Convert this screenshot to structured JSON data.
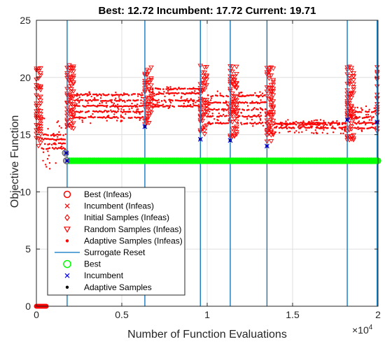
{
  "chart_data": {
    "type": "scatter",
    "title": "Best: 12.72 Incumbent: 17.72 Current: 19.71",
    "xlabel": "Number of Function Evaluations",
    "ylabel": "Objective Function",
    "x_exponent_label": "×10",
    "x_exponent_power": "4",
    "xlim": [
      0,
      20000
    ],
    "ylim": [
      0,
      25
    ],
    "x_ticks": [
      0,
      5000,
      10000,
      15000,
      20000
    ],
    "x_tick_labels": [
      "0",
      "0.5",
      "1",
      "1.5",
      "2"
    ],
    "y_ticks": [
      0,
      5,
      10,
      15,
      20,
      25
    ],
    "y_tick_labels": [
      "0",
      "5",
      "10",
      "15",
      "20",
      "25"
    ],
    "grid": true,
    "legend_position": "lower-left",
    "colors": {
      "infeasible": "#ff0000",
      "reset": "#0072bd",
      "best": "#00ff00",
      "incumbent": "#0000ff",
      "adaptive": "#000000"
    },
    "surrogate_resets": [
      1800,
      6350,
      9600,
      11350,
      13500,
      18200,
      19950
    ],
    "infeasible_blocks": [
      {
        "x_start": 0,
        "x_end": 320,
        "y_min": 14.0,
        "y_max": 21.0,
        "levels": [],
        "kind": "random"
      },
      {
        "x_start": 320,
        "x_end": 1750,
        "y_min": 12.0,
        "y_max": 16.5,
        "levels": [
          15.0,
          14.6,
          14.2,
          13.8
        ],
        "kind": "adaptive"
      },
      {
        "x_start": 1800,
        "x_end": 2250,
        "y_min": 15.5,
        "y_max": 21.0,
        "levels": [],
        "kind": "random"
      },
      {
        "x_start": 2250,
        "x_end": 6300,
        "y_min": 16.0,
        "y_max": 18.8,
        "levels": [
          16.5,
          17.0,
          17.5,
          18.0,
          18.5
        ],
        "kind": "adaptive"
      },
      {
        "x_start": 6350,
        "x_end": 6800,
        "y_min": 16.0,
        "y_max": 21.0,
        "levels": [],
        "kind": "random"
      },
      {
        "x_start": 6800,
        "x_end": 9550,
        "y_min": 17.3,
        "y_max": 19.2,
        "levels": [
          17.5,
          18.0,
          18.6,
          19.0
        ],
        "kind": "adaptive"
      },
      {
        "x_start": 9600,
        "x_end": 10050,
        "y_min": 15.0,
        "y_max": 21.0,
        "levels": [],
        "kind": "random"
      },
      {
        "x_start": 10050,
        "x_end": 11300,
        "y_min": 15.5,
        "y_max": 18.8,
        "levels": [
          16.0,
          16.6,
          17.2,
          17.8,
          18.4
        ],
        "kind": "adaptive"
      },
      {
        "x_start": 11350,
        "x_end": 11800,
        "y_min": 14.8,
        "y_max": 21.0,
        "levels": [],
        "kind": "random"
      },
      {
        "x_start": 11800,
        "x_end": 13450,
        "y_min": 15.5,
        "y_max": 18.8,
        "levels": [
          16.0,
          16.6,
          17.2,
          17.8,
          18.4
        ],
        "kind": "adaptive"
      },
      {
        "x_start": 13500,
        "x_end": 13950,
        "y_min": 14.5,
        "y_max": 21.0,
        "levels": [],
        "kind": "random"
      },
      {
        "x_start": 13950,
        "x_end": 18150,
        "y_min": 15.1,
        "y_max": 16.3,
        "levels": [
          15.6,
          15.9,
          16.0
        ],
        "kind": "adaptive"
      },
      {
        "x_start": 18200,
        "x_end": 18650,
        "y_min": 14.5,
        "y_max": 21.0,
        "levels": [],
        "kind": "random"
      },
      {
        "x_start": 18650,
        "x_end": 19900,
        "y_min": 15.2,
        "y_max": 17.5,
        "levels": [
          15.6,
          16.0,
          16.5,
          17.0
        ],
        "kind": "adaptive"
      },
      {
        "x_start": 19950,
        "x_end": 20000,
        "y_min": 15.0,
        "y_max": 21.0,
        "levels": [],
        "kind": "random"
      }
    ],
    "infeasible_zero_points": {
      "x_start": 0,
      "x_end": 650,
      "y": 0
    },
    "best_infeasible": [
      {
        "x": 1700,
        "y": 13.4
      }
    ],
    "incumbent_points": [
      {
        "x": 1750,
        "y": 13.4
      },
      {
        "x": 1800,
        "y": 12.72
      },
      {
        "x": 6350,
        "y": 15.7
      },
      {
        "x": 9600,
        "y": 14.6
      },
      {
        "x": 11350,
        "y": 14.5
      },
      {
        "x": 13500,
        "y": 14.0
      },
      {
        "x": 18200,
        "y": 16.3
      },
      {
        "x": 19950,
        "y": 16.1
      }
    ],
    "best_feasible_line": {
      "x_start": 1800,
      "x_end": 20000,
      "y": 12.72
    },
    "best_markers_before": [
      {
        "x": 1700,
        "y": 13.4
      },
      {
        "x": 1760,
        "y": 12.72
      }
    ],
    "legend": [
      {
        "label": "Best (Infeas)",
        "marker": "circle-open",
        "color": "#ff0000"
      },
      {
        "label": "Incumbent (Infeas)",
        "marker": "x",
        "color": "#ff0000"
      },
      {
        "label": "Initial Samples (Infeas)",
        "marker": "diamond-open",
        "color": "#ff0000"
      },
      {
        "label": "Random Samples (Infeas)",
        "marker": "triangle-down-open",
        "color": "#ff0000"
      },
      {
        "label": "Adaptive Samples (Infeas)",
        "marker": "dot",
        "color": "#ff0000"
      },
      {
        "label": "Surrogate Reset",
        "marker": "line",
        "color": "#0072bd"
      },
      {
        "label": "Best",
        "marker": "circle-open",
        "color": "#00ff00"
      },
      {
        "label": "Incumbent",
        "marker": "x",
        "color": "#0000ff"
      },
      {
        "label": "Adaptive Samples",
        "marker": "dot",
        "color": "#000000"
      }
    ]
  }
}
